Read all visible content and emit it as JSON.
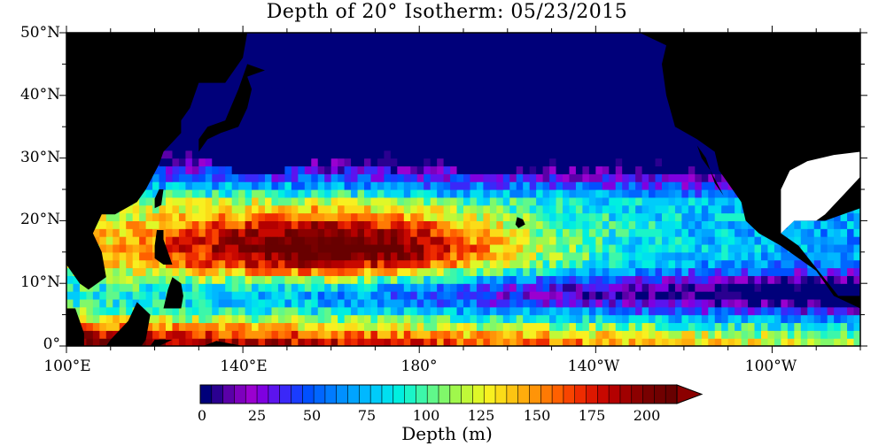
{
  "title": "Depth of 20° Isotherm: 05/23/2015",
  "axes": {
    "y_labels": [
      "50°N",
      "40°N",
      "30°N",
      "20°N",
      "10°N",
      "0°"
    ],
    "x_labels": [
      "100°E",
      "140°E",
      "180°",
      "140°W",
      "100°W"
    ]
  },
  "colorbar": {
    "title": "Depth (m)",
    "labels": [
      "0",
      "25",
      "50",
      "75",
      "100",
      "125",
      "150",
      "175",
      "200"
    ],
    "min": 0,
    "max": 210,
    "step": 5,
    "colors": [
      "#00007a",
      "#2a0090",
      "#5a00a8",
      "#7d00bd",
      "#9a00d0",
      "#7f00e0",
      "#5c14ee",
      "#3a28f8",
      "#1a3cff",
      "#0050ff",
      "#0066ff",
      "#007bff",
      "#0090ff",
      "#00a4ff",
      "#00b8ff",
      "#00ccfa",
      "#00dff0",
      "#00efe0",
      "#1af5c8",
      "#3cf7aa",
      "#60f88a",
      "#80f86a",
      "#a0f84c",
      "#c0f838",
      "#dff828",
      "#f8f020",
      "#fbdc18",
      "#fdc412",
      "#ffac0c",
      "#ff9408",
      "#ff7a04",
      "#ff6000",
      "#f84400",
      "#ee2c00",
      "#dc1800",
      "#c80800",
      "#b40000",
      "#a00000",
      "#8c0000",
      "#780000",
      "#700000",
      "#680000"
    ],
    "extend_color": "#8b0000"
  },
  "land_color": "#000000",
  "ocean_shallow_color": "#00007a",
  "colors": {
    "background": "#ffffff",
    "frame": "#000000"
  }
}
